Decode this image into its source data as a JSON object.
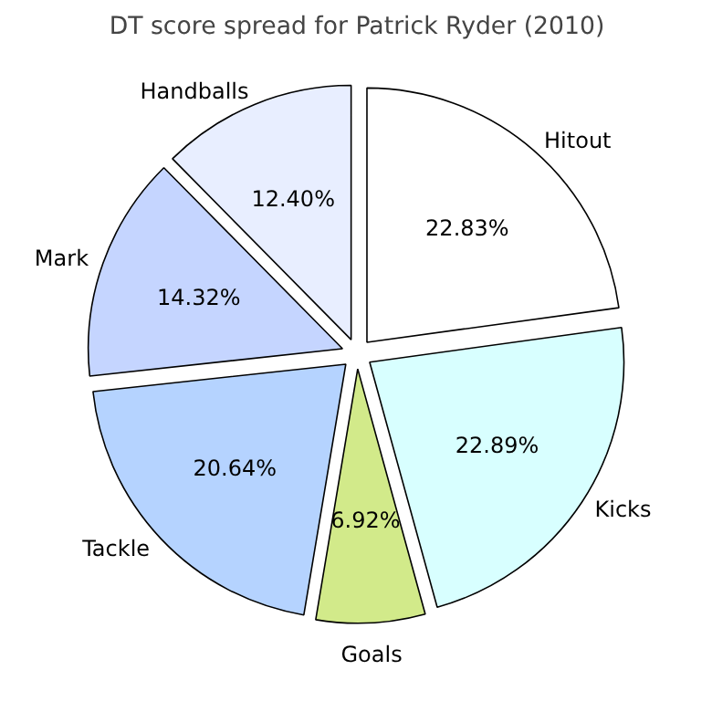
{
  "chart_data": {
    "type": "pie",
    "title": "DT score spread for Patrick Ryder (2010)",
    "categories": [
      "Handballs",
      "Mark",
      "Tackle",
      "Goals",
      "Kicks",
      "Hitout"
    ],
    "values": [
      12.4,
      14.32,
      20.64,
      6.92,
      22.89,
      22.83
    ],
    "value_labels": [
      "12.40%",
      "14.32%",
      "20.64%",
      "6.92%",
      "22.89%",
      "22.83%"
    ],
    "colors": [
      "#e8eeff",
      "#c5d5ff",
      "#b5d3ff",
      "#d2ea8a",
      "#d8ffff",
      "#ffffff"
    ]
  }
}
